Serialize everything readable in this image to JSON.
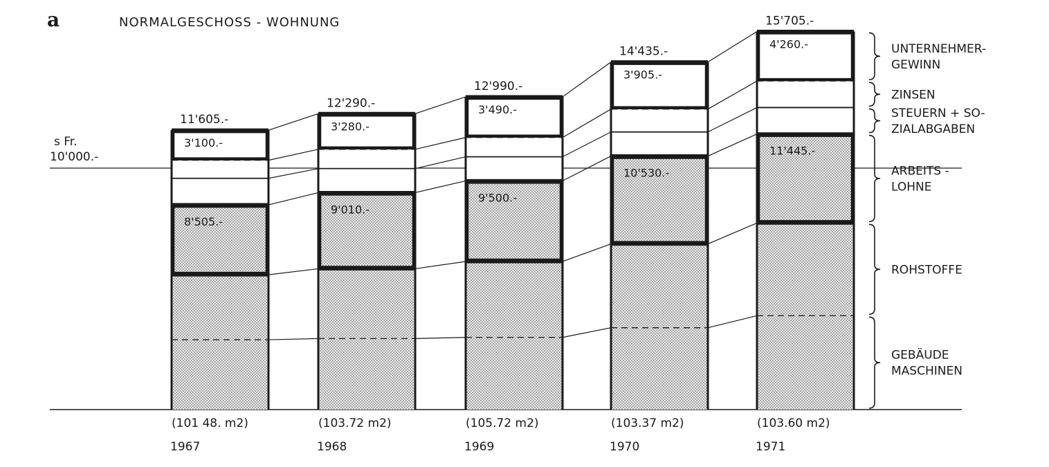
{
  "panel_letter": "a",
  "title": "NORMALGESCHOSS - WOHNUNG",
  "reference_label": [
    "s Fr.",
    "10'000.-"
  ],
  "chart_data": {
    "type": "bar",
    "stacked": true,
    "title": "NORMALGESCHOSS - WOHNUNG",
    "categories": [
      "1967",
      "1968",
      "1969",
      "1970",
      "1971"
    ],
    "areas": [
      "(101 48. m2)",
      "(103.72 m2)",
      "(105.72 m2)",
      "(103.37 m2)",
      "(103.60 m2)"
    ],
    "total_labels": [
      "11'605.-",
      "12'290.-",
      "12'990.-",
      "14'435.-",
      "15'705.-"
    ],
    "series": [
      {
        "name": "GEBÄUDE MASCHINEN",
        "values": [
          2900,
          2950,
          3000,
          3400,
          3900
        ]
      },
      {
        "name": "ROHSTOFFE",
        "values": [
          2700,
          2900,
          3150,
          3480,
          3850
        ]
      },
      {
        "name": "ARBEITS - LOHNE",
        "values": [
          2905,
          3160,
          3350,
          3650,
          3695
        ]
      },
      {
        "name": "STEUERN + SOZIALABGABEN",
        "values": [
          1100,
          1000,
          1000,
          1000,
          1100
        ]
      },
      {
        "name": "ZINSEN",
        "values": [
          750,
          800,
          800,
          950,
          1100
        ]
      },
      {
        "name": "UNTERNEHMER-GEWINN",
        "values": [
          1250,
          1480,
          1690,
          1955,
          2060
        ]
      }
    ],
    "group_labels": [
      {
        "text": "8'505.-",
        "values": [
          8505,
          9010,
          9500,
          10530,
          11445
        ]
      },
      {
        "text": "3'100.-",
        "values": [
          3100,
          3280,
          3490,
          3905,
          4260
        ]
      }
    ],
    "group_value_labels_1": [
      "8'505.-",
      "9'010.-",
      "9'500.-",
      "10'530.-",
      "11'445.-"
    ],
    "group_value_labels_2": [
      "3'100.-",
      "3'280.-",
      "3'490.-",
      "3'905.-",
      "4'260.-"
    ],
    "reference_line": 10000,
    "ylim": [
      0,
      16000
    ],
    "legend_position": "right",
    "legend": [
      {
        "lines": [
          "UNTERNEHMER-",
          "GEWINN"
        ],
        "series": 5
      },
      {
        "lines": [
          "ZINSEN"
        ],
        "series": 4
      },
      {
        "lines": [
          "STEUERN + SO-",
          "ZIALABGABEN"
        ],
        "series": 3
      },
      {
        "lines": [
          "ARBEITS -",
          "LOHNE"
        ],
        "series": 2
      },
      {
        "lines": [
          "ROHSTOFFE"
        ],
        "series": 1
      },
      {
        "lines": [
          "GEBÄUDE",
          "MASCHINEN"
        ],
        "series": 0
      }
    ],
    "colors": {
      "ink": "#1a1a1a",
      "dot": "#6a6a6a",
      "paper": "#ffffff"
    }
  }
}
